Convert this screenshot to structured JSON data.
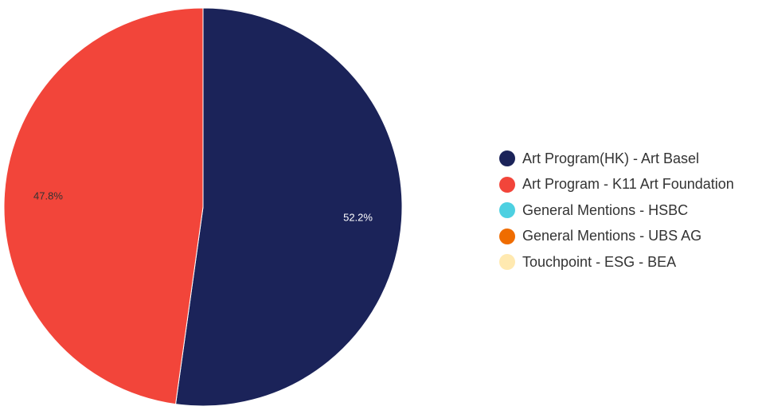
{
  "chart_data": {
    "type": "pie",
    "series": [
      {
        "name": "Art Program(HK) - Art Basel",
        "value": 52.2,
        "label": "52.2%",
        "color": "#1b2359",
        "label_color": "#ffffff"
      },
      {
        "name": "Art Program - K11 Art Foundation",
        "value": 47.8,
        "label": "47.8%",
        "color": "#f2453a",
        "label_color": "#333333"
      },
      {
        "name": "General Mentions - HSBC",
        "value": 0,
        "label": "",
        "color": "#4dd0e1",
        "label_color": "#333333"
      },
      {
        "name": "General Mentions - UBS AG",
        "value": 0,
        "label": "",
        "color": "#ef6c00",
        "label_color": "#333333"
      },
      {
        "name": "Touchpoint - ESG - BEA",
        "value": 0,
        "label": "",
        "color": "#ffe9b0",
        "label_color": "#333333"
      }
    ],
    "legend_position": "right",
    "start_angle": "top",
    "direction": "clockwise"
  }
}
